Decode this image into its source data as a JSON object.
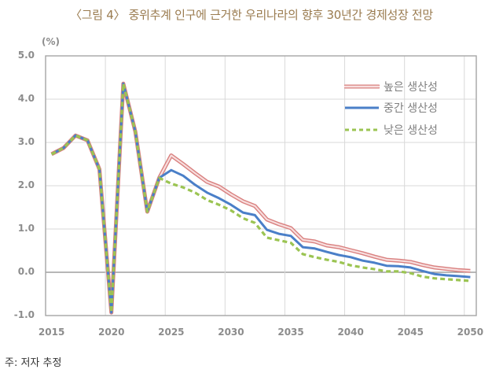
{
  "title": "〈그림 4〉 중위추계 인구에 근거한 우리나라의 향후 30년간 경제성장 전망",
  "unit_label": "(%)",
  "note": "주: 저자 추정",
  "y_ticks": [
    "5.0",
    "4.0",
    "3.0",
    "2.0",
    "1.0",
    "0.0",
    "-1.0"
  ],
  "x_ticks": [
    "2015",
    "2020",
    "2025",
    "2030",
    "2035",
    "2040",
    "2045",
    "2050"
  ],
  "legend": [
    {
      "label": "높은 생산성",
      "color": "#d9807f"
    },
    {
      "label": "중간 생산성",
      "color": "#4a7fc8"
    },
    {
      "label": "낮은 생산성",
      "color": "#9bc452"
    }
  ],
  "chart_data": {
    "type": "line",
    "title": "〈그림 4〉 중위추계 인구에 근거한 우리나라의 향후 30년간 경제성장 전망",
    "xlabel": "",
    "ylabel": "(%)",
    "ylim": [
      -1.0,
      5.0
    ],
    "grid": true,
    "legend_position": "upper right (inside)",
    "x": [
      2015,
      2016,
      2017,
      2018,
      2019,
      2020,
      2021,
      2022,
      2023,
      2024,
      2025,
      2026,
      2027,
      2028,
      2029,
      2030,
      2031,
      2032,
      2033,
      2034,
      2035,
      2036,
      2037,
      2038,
      2039,
      2040,
      2041,
      2042,
      2043,
      2044,
      2045,
      2046,
      2047,
      2048,
      2049,
      2050
    ],
    "series": [
      {
        "name": "높은 생산성",
        "color": "#d9807f",
        "style": "hollow-line",
        "values": [
          2.73,
          2.87,
          3.16,
          3.05,
          2.38,
          -0.93,
          4.36,
          3.25,
          1.4,
          2.18,
          2.7,
          2.5,
          2.29,
          2.09,
          1.98,
          1.8,
          1.64,
          1.53,
          1.22,
          1.11,
          1.02,
          0.75,
          0.71,
          0.62,
          0.58,
          0.51,
          0.44,
          0.36,
          0.29,
          0.27,
          0.24,
          0.17,
          0.11,
          0.08,
          0.05,
          0.03
        ]
      },
      {
        "name": "중간 생산성",
        "color": "#4a7fc8",
        "style": "solid",
        "values": [
          2.73,
          2.87,
          3.16,
          3.05,
          2.38,
          -0.93,
          4.36,
          3.25,
          1.4,
          2.18,
          2.36,
          2.23,
          2.02,
          1.84,
          1.71,
          1.56,
          1.38,
          1.32,
          0.98,
          0.89,
          0.84,
          0.58,
          0.55,
          0.47,
          0.4,
          0.35,
          0.27,
          0.22,
          0.15,
          0.14,
          0.11,
          0.03,
          -0.04,
          -0.07,
          -0.09,
          -0.11
        ]
      },
      {
        "name": "낮은 생산성",
        "color": "#9bc452",
        "style": "dashed",
        "values": [
          2.73,
          2.87,
          3.16,
          3.05,
          2.38,
          -0.93,
          4.36,
          3.25,
          1.4,
          2.18,
          2.05,
          1.96,
          1.84,
          1.67,
          1.56,
          1.43,
          1.25,
          1.14,
          0.8,
          0.74,
          0.68,
          0.42,
          0.35,
          0.29,
          0.24,
          0.16,
          0.11,
          0.07,
          0.02,
          0.02,
          -0.02,
          -0.1,
          -0.14,
          -0.16,
          -0.18,
          -0.2
        ]
      }
    ]
  }
}
